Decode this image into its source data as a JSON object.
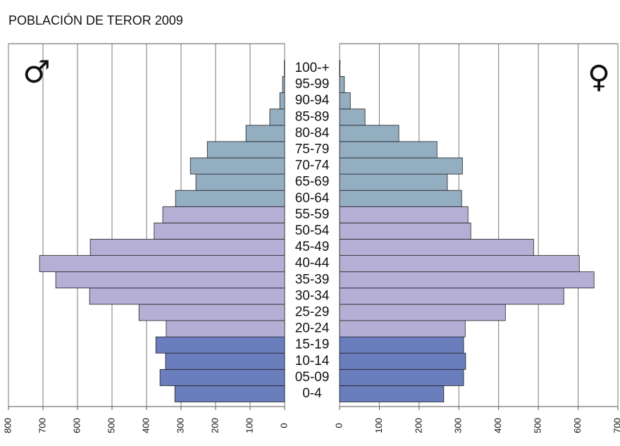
{
  "chart_data": {
    "type": "pyramid",
    "title": "POBLACIÓN DE TEROR 2009",
    "categories": [
      "0-4",
      "05-09",
      "10-14",
      "15-19",
      "20-24",
      "25-29",
      "30-34",
      "35-39",
      "40-44",
      "45-49",
      "50-54",
      "55-59",
      "60-64",
      "65-69",
      "70-74",
      "75-79",
      "80-84",
      "85-89",
      "90-94",
      "95-99",
      "100-+"
    ],
    "bar_colors": [
      "#6a7dbd",
      "#6a7dbd",
      "#6a7dbd",
      "#6a7dbd",
      "#b5afd6",
      "#b5afd6",
      "#b5afd6",
      "#b5afd6",
      "#b5afd6",
      "#b5afd6",
      "#b5afd6",
      "#b5afd6",
      "#93adc1",
      "#93adc1",
      "#93adc1",
      "#93adc1",
      "#93adc1",
      "#93adc1",
      "#93adc1",
      "#93adc1",
      "#93adc1"
    ],
    "grid": true,
    "series": [
      {
        "symbol": "♂",
        "side": "left",
        "values": [
          318,
          361,
          345,
          373,
          343,
          422,
          565,
          663,
          710,
          563,
          378,
          353,
          316,
          257,
          273,
          224,
          112,
          43,
          14,
          6,
          1
        ],
        "xlim": [
          0,
          800
        ],
        "xticks": [
          0,
          100,
          200,
          300,
          400,
          500,
          600,
          700,
          800
        ]
      },
      {
        "symbol": "♀",
        "side": "right",
        "values": [
          262,
          312,
          317,
          312,
          316,
          417,
          564,
          640,
          603,
          488,
          330,
          323,
          307,
          271,
          309,
          245,
          149,
          64,
          27,
          12,
          1
        ],
        "xlim": [
          0,
          700
        ],
        "xticks": [
          0,
          100,
          200,
          300,
          400,
          500,
          600,
          700
        ]
      }
    ]
  }
}
